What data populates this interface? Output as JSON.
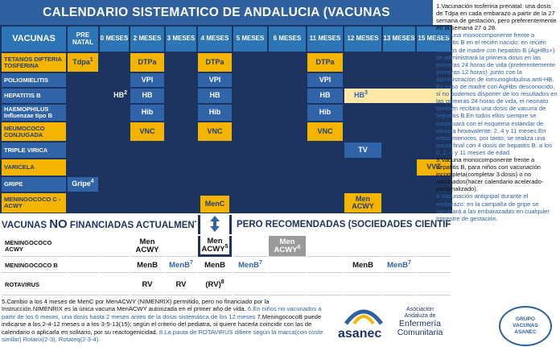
{
  "header": {
    "title": "CALENDARIO SISTEMATICO DE ANDALUCIA (VACUNAS FINANCIADAS)"
  },
  "table": {
    "corner": "VACUNAS",
    "columns": [
      "PRE NATAL",
      "0 MESES",
      "2 MESES",
      "3 MESES",
      "4 MESES",
      "5 MESES",
      "6 MESES",
      "11 MESES",
      "12 MESES",
      "13 MESES",
      "15 MESES"
    ],
    "financed": [
      {
        "label": "TETANOS DIFTERIA TOSFERINA",
        "color": "yellow",
        "cells": [
          {
            "text": "Tdpa",
            "sup": "1"
          },
          null,
          {
            "text": "DTPa"
          },
          null,
          {
            "text": "DTPa"
          },
          null,
          null,
          {
            "text": "DTPa"
          },
          null,
          null,
          null
        ]
      },
      {
        "label": "POLIOMIELITIS",
        "color": "blue",
        "cells": [
          null,
          null,
          {
            "text": "VPI"
          },
          null,
          {
            "text": "VPI"
          },
          null,
          null,
          {
            "text": "VPI"
          },
          null,
          null,
          null
        ]
      },
      {
        "label": "HEPATITIS B",
        "color": "blue",
        "cells": [
          null,
          {
            "text": "HB",
            "sup": "2",
            "style": "plain"
          },
          {
            "text": "HB"
          },
          null,
          {
            "text": "HB"
          },
          null,
          null,
          {
            "text": "HB"
          },
          {
            "text": "HB",
            "sup": "3",
            "style": "light",
            "span": 3
          },
          null,
          null
        ]
      },
      {
        "label": "HAEMOPHILUS Influenzae tipo B",
        "color": "blue",
        "cells": [
          null,
          null,
          {
            "text": "Hib"
          },
          null,
          {
            "text": "Hib"
          },
          null,
          null,
          {
            "text": "Hib"
          },
          null,
          null,
          null
        ]
      },
      {
        "label": "NEUMOCOCO CONJUGADA",
        "color": "yellow",
        "cells": [
          null,
          null,
          {
            "text": "VNC"
          },
          null,
          {
            "text": "VNC"
          },
          null,
          null,
          {
            "text": "VNC"
          },
          null,
          null,
          null
        ]
      },
      {
        "label": "TRIPLE VIRICA",
        "color": "blue",
        "cells": [
          null,
          null,
          null,
          null,
          null,
          null,
          null,
          null,
          {
            "text": "TV"
          },
          null,
          null
        ]
      },
      {
        "label": "VARICELA",
        "color": "yellow",
        "cells": [
          null,
          null,
          null,
          null,
          null,
          null,
          null,
          null,
          null,
          null,
          {
            "text": "VVZ"
          }
        ]
      },
      {
        "label": "GRIPE",
        "color": "blue",
        "cells": [
          {
            "text": "Gripe",
            "sup": "4"
          },
          null,
          null,
          null,
          null,
          null,
          null,
          null,
          null,
          null,
          null
        ]
      },
      {
        "label": "MENINGOCOCO C - ACWY",
        "color": "yellow",
        "cells": [
          null,
          null,
          null,
          null,
          {
            "text": "MenC"
          },
          null,
          null,
          null,
          {
            "text": "Men ACWY"
          },
          null,
          null
        ]
      }
    ],
    "banner": {
      "left": "VACUNAS",
      "no": "NO",
      "middle": "FINANCIADAS ACTUALMENTE,",
      "right": "PERO RECOMENDADAS (SOCIEDADES CIENTIFICAS)"
    },
    "recommended": [
      {
        "label": "MENINGOCOCO ACWY",
        "cells": [
          null,
          null,
          {
            "text": "Men ACWY"
          },
          null,
          {
            "text": "Men ACWY",
            "sup": "5"
          },
          null,
          {
            "text": "Men ACWY",
            "sup": "6",
            "style": "gray"
          },
          null,
          null,
          null,
          null
        ]
      },
      {
        "label": "MENINGOCOCO B",
        "cells": [
          null,
          null,
          {
            "text": "MenB"
          },
          {
            "text": "MenB",
            "sup": "7",
            "style": "blue-text"
          },
          {
            "text": "MenB"
          },
          {
            "text": "MenB",
            "sup": "7",
            "style": "blue-text"
          },
          null,
          null,
          {
            "text": "MenB"
          },
          {
            "text": "MenB",
            "sup": "7",
            "style": "blue-text"
          },
          null
        ]
      },
      {
        "label": "ROTAVIRUS",
        "cells": [
          null,
          null,
          {
            "text": "RV"
          },
          {
            "text": "RV"
          },
          {
            "text": "(RV)",
            "sup": "8"
          },
          null,
          null,
          null,
          null,
          null,
          null
        ]
      }
    ]
  },
  "side_notes": [
    {
      "text": "1.Vacunación tosferina prenatal: una dosis de Tdpa en cada embarazo a partir de la 27 semana de gestación, pero preferentemente en la semana 27 ó 28.",
      "color": "black"
    },
    {
      "text": "2.Vacuna monocomponente frente a hepatitis B en el recién nacido: en recién nacidos de madre con hepatitis B (AgHBs+) se administrará la primera dosis en las primeras 24 horas de vida (preferentemente primeras 12 horas) ,junto con la administración de inmunoglobulina anti-HB. En caso de madre con AgHbs desconocido, si no podemos disponer de los resultados en las primeras 24 horas de vida, el neonato también recibirá una dosis de vacuna de hepatitis B.En todos ellos siempre se continuará con el esquema estándar de vacuna hexavalente: 2, 4 y 11 meses.En estos menores, por tanto, se realiza una pauta final con 4 dosis de hepatitis B: a los 0, 2, 4 y 11 meses de edad.",
      "color": "blue"
    },
    {
      "text": "3.Vacuna monocomponente frente a hepatitis B, para niños con vacunación incompleta(completar 3 dosis) o no vacunados(hacer calendario acelerado-personalizado).",
      "color": "black"
    },
    {
      "text": "4.Vacunación antigripal durante el embarazo: en la campaña de gripe se vacunará a las embarazadas en cualquier trimestre de gestación.",
      "color": "blue"
    }
  ],
  "bottom_notes": [
    {
      "text": "5.Cambio a los 4 meses de MenC por MenACWY (NIMENRIX) permitido, pero no financiado por la Instrucción.NIMENRIX es la única vacuna MenACWY autorizada en el primer año de vida.",
      "color": "black"
    },
    {
      "text": "6.En niños no vacunados a partir de los 6 meses, una dosis hasta 2 meses antes de la dosis sistemática de los 12 meses",
      "color": "blue"
    },
    {
      "text": "7.MeningococoB puede indicarse a los 2-4-12 meses o a los 3-5-13(15); según el criterio del pediatra, si quiere hacerla coincidir con las de calendario o aplicarla en solitario, por su reactogenicidad.",
      "color": "black"
    },
    {
      "text": "8.La pauta de ROTAVIRUS difiere según la marca(con coste similar) Rotarix(2-3), Rotateq(2-3-4).",
      "color": "blue"
    }
  ],
  "logos": {
    "asanec": "asanec",
    "association": [
      "Asociación",
      "Andaluza de",
      "Enfermería",
      "Comunitaria"
    ],
    "group": [
      "GRUPO",
      "VACUNAS",
      "ASANEC"
    ]
  }
}
